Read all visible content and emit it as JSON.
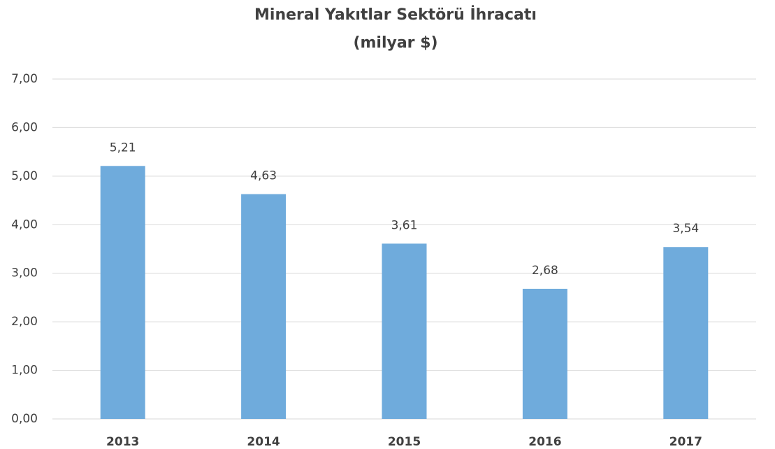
{
  "chart_data": {
    "type": "bar",
    "title": "Mineral Yakıtlar Sektörü İhracatı",
    "subtitle": "(milyar $)",
    "categories": [
      "2013",
      "2014",
      "2015",
      "2016",
      "2017"
    ],
    "values": [
      5.21,
      4.63,
      3.61,
      2.68,
      3.54
    ],
    "value_labels": [
      "5,21",
      "4,63",
      "3,61",
      "2,68",
      "3,54"
    ],
    "color": "#6fabdc",
    "ylim": [
      0,
      7
    ],
    "yticks": [
      {
        "value": 0,
        "label": "0,00"
      },
      {
        "value": 1,
        "label": "1,00"
      },
      {
        "value": 2,
        "label": "2,00"
      },
      {
        "value": 3,
        "label": "3,00"
      },
      {
        "value": 4,
        "label": "4,00"
      },
      {
        "value": 5,
        "label": "5,00"
      },
      {
        "value": 6,
        "label": "6,00"
      },
      {
        "value": 7,
        "label": "7,00"
      }
    ],
    "grid": true
  }
}
